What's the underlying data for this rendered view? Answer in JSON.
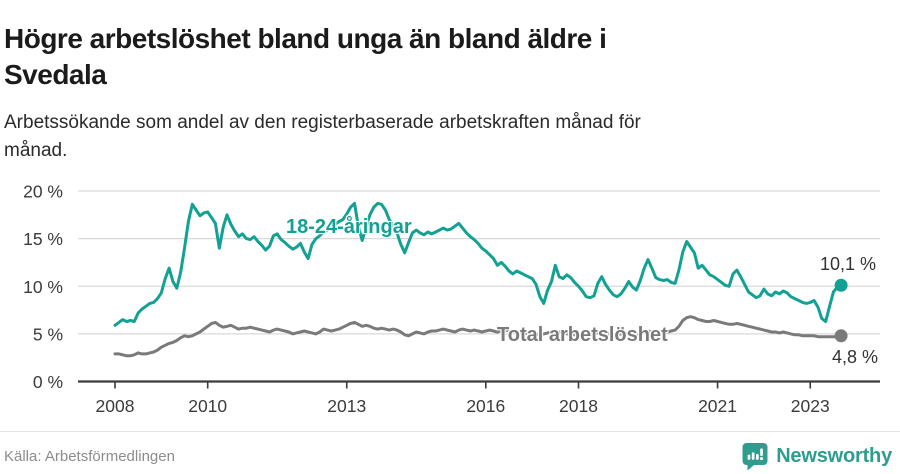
{
  "header": {
    "title": "Högre arbetslöshet bland unga än bland äldre i\nSvedala",
    "subtitle": "Arbetssökande som andel av den registerbaserade arbetskraften månad för\nmånad."
  },
  "colors": {
    "accent_teal": "#12a192",
    "series_gray": "#7a7a7a",
    "grid": "#d9d9d9",
    "axis": "#3b3b3b",
    "tick_text": "#3b3b3b",
    "end_label_text": "#333333",
    "footer_text": "#8c8c8c",
    "brand_teal": "#2f9c8e"
  },
  "chart_data": {
    "type": "line",
    "title": "Högre arbetslöshet bland unga än bland äldre i Svedala",
    "subtitle": "Arbetssökande som andel av den registerbaserade arbetskraften månad för månad.",
    "x_unit": "month",
    "x_range": {
      "start": "2008-01",
      "end": "2023-09"
    },
    "ylim": [
      0,
      21
    ],
    "grid": "horizontal",
    "legend_position": "inline-annotations",
    "grid_color": "#d9d9d9",
    "axis_color": "#3b3b3b",
    "tick_color": "#3b3b3b",
    "xticks": [
      {
        "value": 2008,
        "label": "2008"
      },
      {
        "value": 2010,
        "label": "2010"
      },
      {
        "value": 2013,
        "label": "2013"
      },
      {
        "value": 2016,
        "label": "2016"
      },
      {
        "value": 2018,
        "label": "2018"
      },
      {
        "value": 2021,
        "label": "2021"
      },
      {
        "value": 2023,
        "label": "2023"
      }
    ],
    "yticks": [
      {
        "value": 0,
        "label": "0 %"
      },
      {
        "value": 5,
        "label": "5 %"
      },
      {
        "value": 10,
        "label": "10 %"
      },
      {
        "value": 15,
        "label": "15 %"
      },
      {
        "value": 20,
        "label": "20 %"
      }
    ],
    "series": [
      {
        "name": "18-24-åringar",
        "color": "#12a192",
        "end_label": "10,1 %",
        "last_value": 10.1,
        "values": [
          5.9,
          6.2,
          6.5,
          6.3,
          6.4,
          6.3,
          7.2,
          7.6,
          7.9,
          8.2,
          8.3,
          8.7,
          9.3,
          10.8,
          11.9,
          10.5,
          9.8,
          11.5,
          14.0,
          16.8,
          18.6,
          18.0,
          17.4,
          17.7,
          17.8,
          17.2,
          16.6,
          14.0,
          16.2,
          17.5,
          16.5,
          15.8,
          15.2,
          15.5,
          15.0,
          14.9,
          15.2,
          14.7,
          14.3,
          13.8,
          14.2,
          15.3,
          15.5,
          14.9,
          14.6,
          14.2,
          13.9,
          14.1,
          14.5,
          13.6,
          12.9,
          14.4,
          15.0,
          15.3,
          15.7,
          15.9,
          16.2,
          16.5,
          16.8,
          17.0,
          17.6,
          18.3,
          18.7,
          16.3,
          14.8,
          16.2,
          17.5,
          18.3,
          18.7,
          18.6,
          18.0,
          17.0,
          16.4,
          15.6,
          14.4,
          13.5,
          14.6,
          15.6,
          15.9,
          15.6,
          15.4,
          15.7,
          15.5,
          15.7,
          15.9,
          16.1,
          15.9,
          16.0,
          16.3,
          16.6,
          16.1,
          15.6,
          15.2,
          14.9,
          14.5,
          14.0,
          13.7,
          13.3,
          12.9,
          12.2,
          12.5,
          12.1,
          11.6,
          11.3,
          11.6,
          11.4,
          11.2,
          11.0,
          10.8,
          10.2,
          8.9,
          8.2,
          9.6,
          10.5,
          12.2,
          11.0,
          10.8,
          11.2,
          10.9,
          10.4,
          10.0,
          9.5,
          8.9,
          8.8,
          9.0,
          10.3,
          11.0,
          10.2,
          9.6,
          9.1,
          8.9,
          9.2,
          9.8,
          10.5,
          9.9,
          9.6,
          10.6,
          11.9,
          12.8,
          11.9,
          10.9,
          10.7,
          10.6,
          10.7,
          10.4,
          10.3,
          11.7,
          13.6,
          14.7,
          14.1,
          13.5,
          11.9,
          12.2,
          11.7,
          11.2,
          11.0,
          10.7,
          10.4,
          10.1,
          10.0,
          11.3,
          11.7,
          11.0,
          10.2,
          9.4,
          9.1,
          8.8,
          9.0,
          9.7,
          9.2,
          9.0,
          9.4,
          9.2,
          9.5,
          9.3,
          8.9,
          8.7,
          8.5,
          8.3,
          8.2,
          8.3,
          8.5,
          7.8,
          6.6,
          6.3,
          7.9,
          9.4,
          9.9,
          10.1
        ]
      },
      {
        "name": "Total arbetslöshet",
        "color": "#7a7a7a",
        "end_label": "4,8 %",
        "last_value": 4.8,
        "values": [
          2.9,
          2.9,
          2.8,
          2.7,
          2.7,
          2.8,
          3.0,
          2.9,
          2.9,
          3.0,
          3.1,
          3.3,
          3.6,
          3.8,
          4.0,
          4.1,
          4.3,
          4.6,
          4.8,
          4.7,
          4.8,
          5.0,
          5.2,
          5.5,
          5.8,
          6.1,
          6.2,
          5.9,
          5.7,
          5.8,
          5.9,
          5.7,
          5.5,
          5.6,
          5.6,
          5.7,
          5.6,
          5.5,
          5.4,
          5.3,
          5.2,
          5.4,
          5.5,
          5.4,
          5.3,
          5.2,
          5.0,
          5.1,
          5.2,
          5.3,
          5.2,
          5.1,
          5.0,
          5.2,
          5.5,
          5.4,
          5.3,
          5.4,
          5.5,
          5.7,
          5.9,
          6.1,
          6.2,
          6.0,
          5.8,
          5.9,
          5.8,
          5.6,
          5.5,
          5.6,
          5.5,
          5.4,
          5.5,
          5.4,
          5.2,
          4.9,
          4.8,
          5.0,
          5.2,
          5.1,
          5.0,
          5.2,
          5.3,
          5.3,
          5.4,
          5.5,
          5.4,
          5.3,
          5.2,
          5.4,
          5.5,
          5.4,
          5.3,
          5.4,
          5.3,
          5.2,
          5.3,
          5.4,
          5.3,
          5.2,
          5.3,
          5.4,
          5.3,
          5.2,
          5.1,
          5.2,
          5.1,
          5.0,
          5.1,
          5.0,
          4.9,
          5.0,
          5.1,
          5.2,
          5.3,
          5.2,
          5.1,
          5.0,
          5.0,
          4.9,
          5.0,
          4.9,
          4.8,
          4.9,
          5.0,
          5.1,
          5.2,
          5.1,
          5.0,
          4.9,
          4.9,
          5.0,
          5.0,
          5.1,
          5.0,
          4.9,
          5.0,
          5.2,
          5.3,
          5.2,
          5.1,
          5.1,
          5.2,
          5.2,
          5.3,
          5.4,
          5.8,
          6.4,
          6.7,
          6.8,
          6.7,
          6.5,
          6.4,
          6.3,
          6.3,
          6.4,
          6.3,
          6.2,
          6.1,
          6.0,
          6.0,
          6.1,
          6.0,
          5.9,
          5.8,
          5.7,
          5.6,
          5.5,
          5.4,
          5.3,
          5.2,
          5.2,
          5.1,
          5.2,
          5.1,
          5.0,
          4.9,
          4.9,
          4.8,
          4.8,
          4.8,
          4.8,
          4.7,
          4.7,
          4.7,
          4.7,
          4.7,
          4.7,
          4.8
        ]
      }
    ]
  },
  "footer": {
    "source": "Källa: Arbetsförmedlingen",
    "brand": "Newsworthy"
  }
}
